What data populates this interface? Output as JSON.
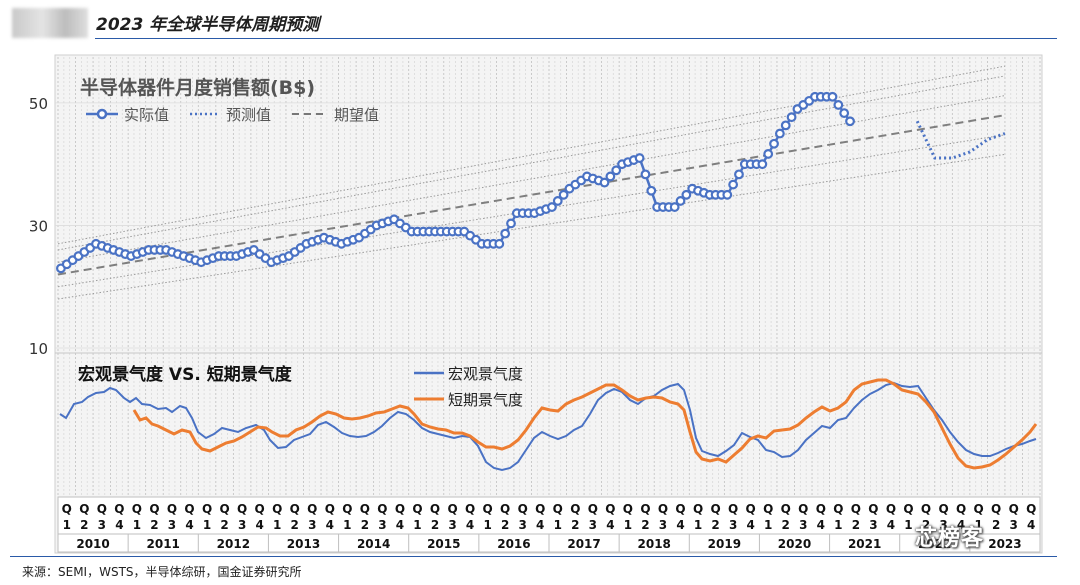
{
  "header": {
    "title": "2023 年全球半导体周期预测"
  },
  "source": "来源：SEMI，WSTS，半导体综研，国金证券研究所",
  "watermark": "芯榜客",
  "chart_data": [
    {
      "type": "line",
      "title": "半导体器件月度销售额(B$)",
      "legend": [
        "实际值",
        "预测值",
        "期望值"
      ],
      "ylim": [
        10,
        57
      ],
      "yticks": [
        10,
        30,
        50
      ],
      "series_actual_quarterly": [
        23,
        25,
        27,
        26,
        25,
        26,
        26,
        25,
        24,
        25,
        25,
        26,
        24,
        25,
        27,
        28,
        27,
        28,
        30,
        31,
        29,
        29,
        29,
        29,
        27,
        27,
        32,
        32,
        33,
        36,
        38,
        37,
        40,
        41,
        33,
        33,
        36,
        35,
        35,
        40,
        40,
        45,
        49,
        51,
        51,
        47
      ],
      "series_forecast": [
        {
          "x": 2022.25,
          "y": 47
        },
        {
          "x": 2022.5,
          "y": 41
        },
        {
          "x": 2022.75,
          "y": 41
        },
        {
          "x": 2023.0,
          "y": 42
        },
        {
          "x": 2023.25,
          "y": 44
        },
        {
          "x": 2023.5,
          "y": 45
        }
      ],
      "trend": {
        "start": {
          "x": 2010.0,
          "y": 22
        },
        "end": {
          "x": 2023.5,
          "y": 48
        },
        "bands": [
          -4,
          -2,
          2,
          4,
          5
        ]
      }
    },
    {
      "type": "line",
      "title": "宏观景气度 VS. 短期景气度",
      "series": [
        {
          "name": "宏观景气度",
          "color": "#4a72c4"
        },
        {
          "name": "短期景气度",
          "color": "#ed7d31"
        }
      ]
    }
  ],
  "x_axis": {
    "quarter_prefix": "Q",
    "quarters": [
      "1",
      "2",
      "3",
      "4"
    ],
    "years": [
      "2010",
      "2011",
      "2012",
      "2013",
      "2014",
      "2015",
      "2016",
      "2017",
      "2018",
      "2019",
      "2020",
      "2021",
      "2022",
      "2023"
    ]
  }
}
